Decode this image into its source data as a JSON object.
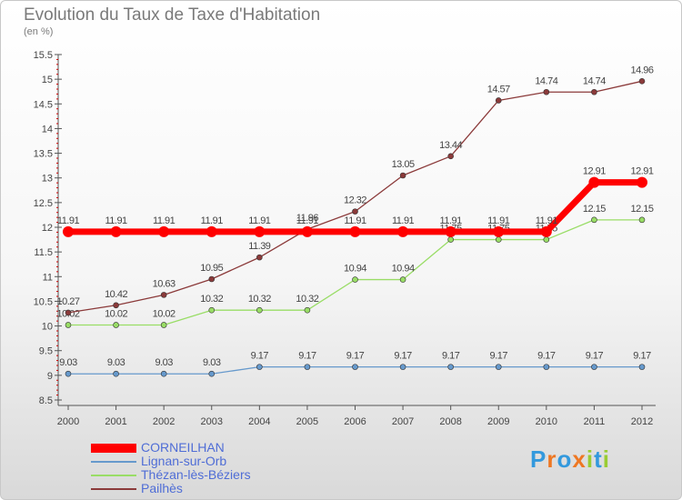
{
  "chart_data": {
    "type": "line",
    "title": "Evolution du Taux de Taxe d'Habitation",
    "unit_label": "(en %)",
    "x": [
      "2000",
      "2001",
      "2002",
      "2003",
      "2004",
      "2005",
      "2006",
      "2007",
      "2008",
      "2009",
      "2010",
      "2011",
      "2012"
    ],
    "ylim": [
      8.5,
      15.5
    ],
    "yticks": [
      "8.5",
      "9",
      "9.5",
      "10",
      "10.5",
      "11",
      "11.5",
      "12",
      "12.5",
      "13",
      "13.5",
      "14",
      "14.5",
      "15",
      "15.5"
    ],
    "grid": false,
    "legend_position": "bottom-left",
    "series": [
      {
        "name": "CORNEILHAN",
        "color": "#ff0000",
        "values": [
          11.91,
          11.91,
          11.91,
          11.91,
          11.91,
          11.91,
          11.91,
          11.91,
          11.91,
          11.91,
          11.91,
          12.91,
          12.91
        ]
      },
      {
        "name": "Lignan-sur-Orb",
        "color": "#6699cc",
        "values": [
          9.03,
          9.03,
          9.03,
          9.03,
          9.17,
          9.17,
          9.17,
          9.17,
          9.17,
          9.17,
          9.17,
          9.17,
          9.17
        ]
      },
      {
        "name": "Thézan-lès-Béziers",
        "color": "#99dd66",
        "values": [
          10.02,
          10.02,
          10.02,
          10.32,
          10.32,
          10.32,
          10.94,
          10.94,
          11.75,
          11.75,
          11.75,
          12.15,
          12.15
        ]
      },
      {
        "name": "Pailhès",
        "color": "#8b3a3a",
        "values": [
          10.27,
          10.42,
          10.63,
          10.95,
          11.39,
          11.96,
          12.32,
          13.05,
          13.44,
          14.57,
          14.74,
          14.74,
          14.96
        ]
      }
    ]
  },
  "logo": {
    "letters": [
      "P",
      "r",
      "o",
      "x",
      "i",
      "t",
      "i"
    ],
    "colors": [
      "#3399dd",
      "#ee7722",
      "#3399dd",
      "#ee7722",
      "#99cc33",
      "#3399dd",
      "#99cc33"
    ]
  }
}
